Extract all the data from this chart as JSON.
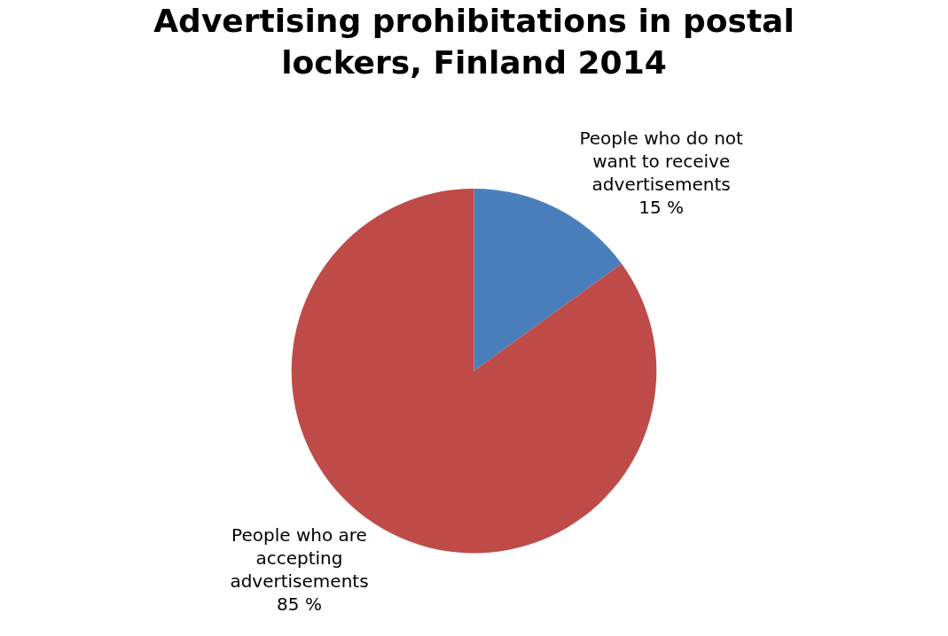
{
  "chart_data": {
    "type": "pie",
    "title": "Advertising prohibitations in postal lockers, Finland 2014",
    "categories": [
      "People who do not want to receive advertisements",
      "People who are accepting advertisements"
    ],
    "values": [
      15,
      85
    ],
    "colors": [
      "#4a7ebb",
      "#be4b48"
    ],
    "value_labels": [
      "15 %",
      "85 %"
    ],
    "legend": false
  }
}
